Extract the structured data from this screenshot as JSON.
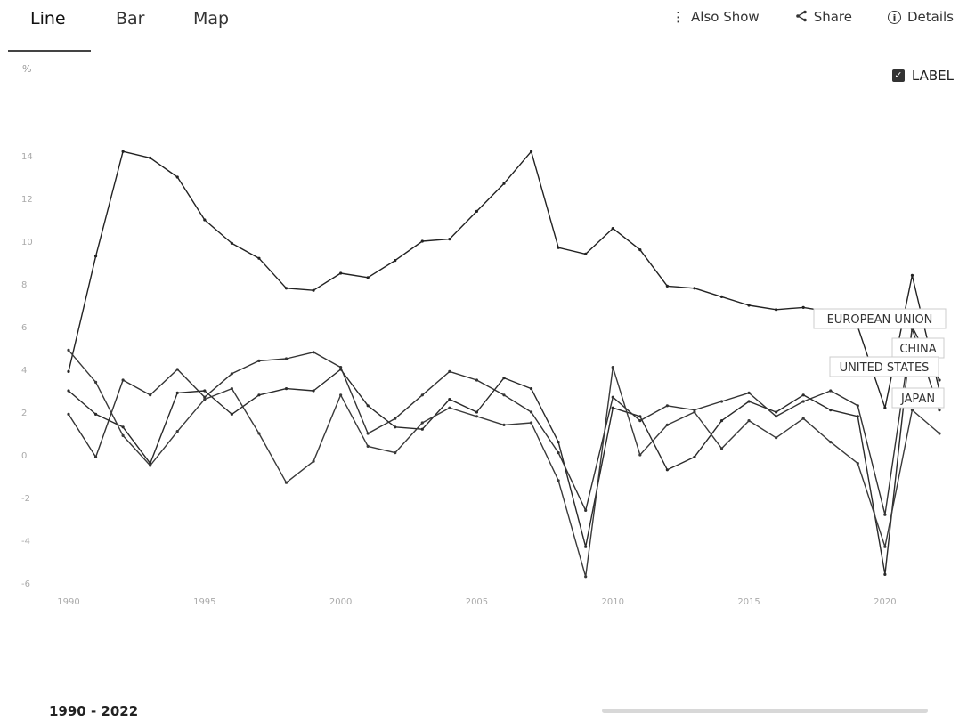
{
  "tabs": [
    {
      "label": "Line",
      "active": true
    },
    {
      "label": "Bar",
      "active": false
    },
    {
      "label": "Map",
      "active": false
    }
  ],
  "actions": {
    "also_show": "Also Show",
    "share": "Share",
    "details": "Details"
  },
  "label_toggle": {
    "label": "LABEL",
    "checked": true
  },
  "date_range": "1990 - 2022",
  "chart_data": {
    "type": "line",
    "ylabel": "%",
    "ylim": [
      -6,
      16
    ],
    "yticks": [
      "-6",
      "-4",
      "-2",
      "0",
      "2",
      "4",
      "6",
      "8",
      "10",
      "12",
      "14"
    ],
    "xticks": [
      "1990",
      "1995",
      "2000",
      "2005",
      "2010",
      "2015",
      "2020"
    ],
    "x": [
      1990,
      1991,
      1992,
      1993,
      1994,
      1995,
      1996,
      1997,
      1998,
      1999,
      2000,
      2001,
      2002,
      2003,
      2004,
      2005,
      2006,
      2007,
      2008,
      2009,
      2010,
      2011,
      2012,
      2013,
      2014,
      2015,
      2016,
      2017,
      2018,
      2019,
      2020,
      2021,
      2022
    ],
    "series": [
      {
        "name": "CHINA",
        "values": [
          3.9,
          9.3,
          14.2,
          13.9,
          13.0,
          11.0,
          9.9,
          9.2,
          7.8,
          7.7,
          8.5,
          8.3,
          9.1,
          10.0,
          10.1,
          11.4,
          12.7,
          14.2,
          9.7,
          9.4,
          10.6,
          9.6,
          7.9,
          7.8,
          7.4,
          7.0,
          6.8,
          6.9,
          6.7,
          6.0,
          2.2,
          8.4,
          3.0
        ]
      },
      {
        "name": "EUROPEAN UNION",
        "values": [
          3.0,
          1.9,
          1.3,
          -0.4,
          2.9,
          3.0,
          1.9,
          2.8,
          3.1,
          3.0,
          4.0,
          2.3,
          1.3,
          1.2,
          2.6,
          2.0,
          3.6,
          3.1,
          0.6,
          -4.3,
          2.2,
          1.8,
          -0.7,
          -0.1,
          1.6,
          2.5,
          2.0,
          2.8,
          2.1,
          1.8,
          -5.6,
          6.0,
          3.5
        ]
      },
      {
        "name": "UNITED STATES",
        "values": [
          1.9,
          -0.1,
          3.5,
          2.8,
          4.0,
          2.7,
          3.8,
          4.4,
          4.5,
          4.8,
          4.1,
          1.0,
          1.7,
          2.8,
          3.9,
          3.5,
          2.8,
          2.0,
          0.1,
          -2.6,
          2.7,
          1.6,
          2.3,
          2.1,
          2.5,
          2.9,
          1.8,
          2.5,
          3.0,
          2.3,
          -2.8,
          5.9,
          2.1
        ]
      },
      {
        "name": "JAPAN",
        "values": [
          4.9,
          3.4,
          0.9,
          -0.5,
          1.1,
          2.6,
          3.1,
          1.0,
          -1.3,
          -0.3,
          2.8,
          0.4,
          0.1,
          1.5,
          2.2,
          1.8,
          1.4,
          1.5,
          -1.2,
          -5.7,
          4.1,
          0.0,
          1.4,
          2.0,
          0.3,
          1.6,
          0.8,
          1.7,
          0.6,
          -0.4,
          -4.3,
          2.1,
          1.0
        ]
      }
    ]
  }
}
